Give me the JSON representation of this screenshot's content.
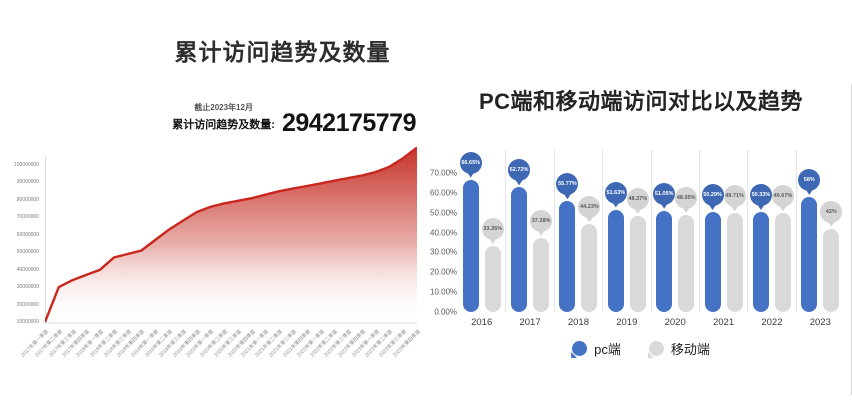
{
  "chart_data": [
    {
      "type": "area",
      "title": "累计访问趋势及数量",
      "annotation": {
        "asof": "截止2023年12月",
        "label": "累计访问趋势及数量:",
        "value": "2942175779"
      },
      "x": [
        "2017年第一季度",
        "2017年第二季度",
        "2017年第三季度",
        "2017年第四季度",
        "2018年第一季度",
        "2018年第二季度",
        "2018年第三季度",
        "2018年第四季度",
        "2019年第一季度",
        "2019年第二季度",
        "2019年第三季度",
        "2019年第四季度",
        "2020年第一季度",
        "2020年第二季度",
        "2020年第三季度",
        "2020年第四季度",
        "2021年第一季度",
        "2021年第二季度",
        "2021年第三季度",
        "2021年第四季度",
        "2022年第一季度",
        "2022年第二季度",
        "2022年第三季度",
        "2022年第四季度",
        "2023年第一季度",
        "2023年第二季度",
        "2023年第三季度",
        "2023年第四季度"
      ],
      "values": [
        10000000,
        30000000,
        34000000,
        37000000,
        40000000,
        47000000,
        49000000,
        51000000,
        57000000,
        63000000,
        68000000,
        73000000,
        76000000,
        78000000,
        79500000,
        81000000,
        83000000,
        85000000,
        86500000,
        88000000,
        89500000,
        91000000,
        92500000,
        94000000,
        96000000,
        99000000,
        104000000,
        110000000
      ],
      "yticks": [
        10000000,
        20000000,
        30000000,
        40000000,
        50000000,
        60000000,
        70000000,
        80000000,
        90000000,
        100000000
      ],
      "ylim": [
        10000000,
        100000000
      ],
      "grid": false,
      "legend_position": "none",
      "line_color": "#c9261d",
      "fill_top_color": "#c42a20",
      "fill_bottom_color": "#ffffff"
    },
    {
      "type": "bar",
      "title": "PC端和移动端访问对比以及趋势",
      "categories": [
        "2016",
        "2017",
        "2018",
        "2019",
        "2020",
        "2021",
        "2022",
        "2023"
      ],
      "series": [
        {
          "name": "pc端",
          "color": "#4472c4",
          "balloon_color": "#3e68b4",
          "label_color": "#ffffff",
          "values": [
            66.65,
            62.72,
            55.77,
            51.63,
            51.05,
            50.29,
            50.33,
            58
          ],
          "labels": [
            "66.65%",
            "62.72%",
            "55.77%",
            "51.63%",
            "51.05%",
            "50.29%",
            "50.33%",
            "58%"
          ]
        },
        {
          "name": "移动端",
          "color": "#d9d9d9",
          "balloon_color": "#d4d4d4",
          "label_color": "#5a5a5a",
          "values": [
            33.35,
            37.28,
            44.23,
            48.37,
            48.95,
            49.71,
            49.67,
            42
          ],
          "labels": [
            "33.35%",
            "37.28%",
            "44.23%",
            "48.37%",
            "48.95%",
            "49.71%",
            "49.67%",
            "42%"
          ]
        }
      ],
      "yticks": [
        "0.00%",
        "10.00%",
        "20.00%",
        "30.00%",
        "40.00%",
        "50.00%",
        "60.00%",
        "70.00%"
      ],
      "ylim": [
        0,
        70
      ],
      "grid": false,
      "legend": [
        "pc端",
        "移动端"
      ],
      "legend_position": "bottom"
    }
  ]
}
